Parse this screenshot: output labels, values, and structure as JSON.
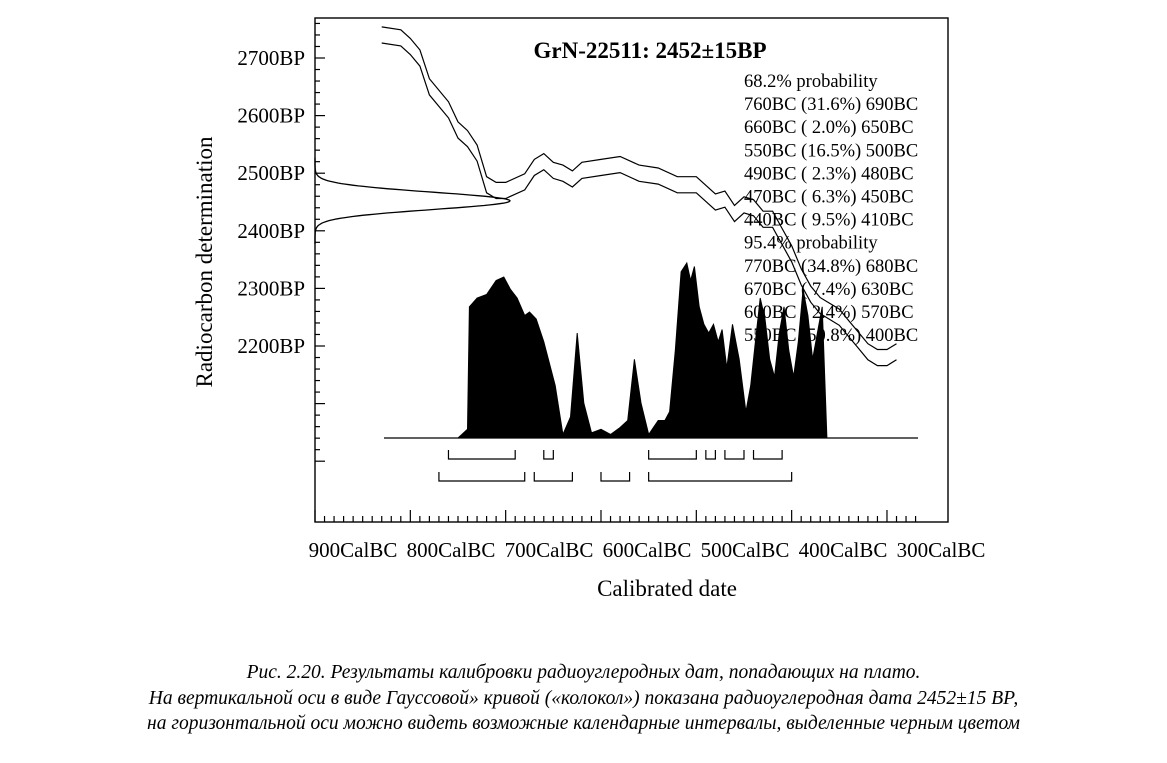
{
  "chart_data": {
    "type": "area",
    "title": "GrN-22511: 2452±15BP",
    "xlabel": "Calibrated date",
    "ylabel": "Radiocarbon determination",
    "x_ticks": [
      "900CalBC",
      "800CalBC",
      "700CalBC",
      "600CalBC",
      "500CalBC",
      "400CalBC",
      "300CalBC"
    ],
    "y_ticks": [
      "2700BP",
      "2600BP",
      "2500BP",
      "2400BP",
      "2300BP",
      "2200BP"
    ],
    "xlim": [
      -900,
      -270
    ],
    "ylim": [
      2000,
      2760
    ],
    "measurement": {
      "bp": 2452,
      "error": 15
    },
    "calibration_curve": {
      "x": [
        -830,
        -810,
        -800,
        -790,
        -780,
        -760,
        -750,
        -740,
        -730,
        -720,
        -710,
        -700,
        -680,
        -670,
        -660,
        -650,
        -640,
        -630,
        -620,
        -600,
        -580,
        -560,
        -540,
        -520,
        -500,
        -480,
        -470,
        -460,
        -450,
        -440,
        -430,
        -420,
        -410,
        -400,
        -390,
        -380,
        -370,
        -360,
        -350,
        -340,
        -330,
        -320,
        -310,
        -300,
        -290
      ],
      "y": [
        2740,
        2735,
        2720,
        2700,
        2650,
        2610,
        2575,
        2560,
        2535,
        2480,
        2470,
        2470,
        2485,
        2510,
        2520,
        2505,
        2500,
        2490,
        2505,
        2510,
        2515,
        2500,
        2495,
        2480,
        2480,
        2450,
        2455,
        2430,
        2445,
        2440,
        2420,
        2420,
        2390,
        2360,
        2320,
        2290,
        2270,
        2260,
        2250,
        2230,
        2210,
        2190,
        2180,
        2180,
        2190
      ],
      "band": 14
    },
    "probability_distribution": {
      "x": [
        -750,
        -740,
        -738,
        -730,
        -720,
        -710,
        -702,
        -695,
        -688,
        -680,
        -675,
        -668,
        -660,
        -648,
        -640,
        -632,
        -625,
        -618,
        -610,
        -600,
        -590,
        -580,
        -572,
        -565,
        -558,
        -550,
        -545,
        -540,
        -533,
        -528,
        -522,
        -516,
        -510,
        -506,
        -502,
        -497,
        -492,
        -487,
        -482,
        -477,
        -473,
        -468,
        -462,
        -455,
        -448,
        -443,
        -438,
        -433,
        -428,
        -423,
        -418,
        -413,
        -408,
        -403,
        -398,
        -393,
        -388,
        -383,
        -378,
        -373,
        -368,
        -363
      ],
      "density": [
        0,
        0.05,
        0.75,
        0.8,
        0.82,
        0.9,
        0.92,
        0.85,
        0.8,
        0.7,
        0.72,
        0.68,
        0.55,
        0.3,
        0.02,
        0.12,
        0.6,
        0.2,
        0.03,
        0.05,
        0.02,
        0.06,
        0.1,
        0.45,
        0.2,
        0.02,
        0.06,
        0.1,
        0.1,
        0.15,
        0.5,
        0.95,
        1.0,
        0.9,
        0.98,
        0.75,
        0.65,
        0.6,
        0.65,
        0.55,
        0.62,
        0.4,
        0.65,
        0.45,
        0.15,
        0.3,
        0.55,
        0.8,
        0.68,
        0.45,
        0.35,
        0.6,
        0.75,
        0.5,
        0.35,
        0.55,
        0.85,
        0.7,
        0.45,
        0.6,
        0.75,
        0
      ]
    },
    "ranges_68": [
      [
        -760,
        -690
      ],
      [
        -660,
        -650
      ],
      [
        -550,
        -500
      ],
      [
        -490,
        -480
      ],
      [
        -470,
        -450
      ],
      [
        -440,
        -410
      ]
    ],
    "ranges_95": [
      [
        -770,
        -680
      ],
      [
        -670,
        -630
      ],
      [
        -600,
        -570
      ],
      [
        -550,
        -400
      ]
    ],
    "annotations": [
      "68.2% probability",
      "760BC (31.6%) 690BC",
      "660BC ( 2.0%) 650BC",
      "550BC (16.5%) 500BC",
      "490BC ( 2.3%) 480BC",
      "470BC ( 6.3%) 450BC",
      "440BC ( 9.5%) 410BC",
      "95.4% probability",
      "770BC (34.8%) 680BC",
      "670BC ( 7.4%) 630BC",
      "600BC ( 2.4%) 570BC",
      "550BC (50.8%) 400BC"
    ]
  },
  "caption": {
    "line1": "Рис. 2.20. Результаты калибровки радиоуглеродных дат, попадающих на плато.",
    "line2": "На вертикальной оси в виде Гауссовой» кривой («колокол») показана радиоуглеродная дата 2452±15 ВР,",
    "line3": "на горизонтальной оси можно видеть возможные календарные интервалы, выделенные черным цветом"
  }
}
